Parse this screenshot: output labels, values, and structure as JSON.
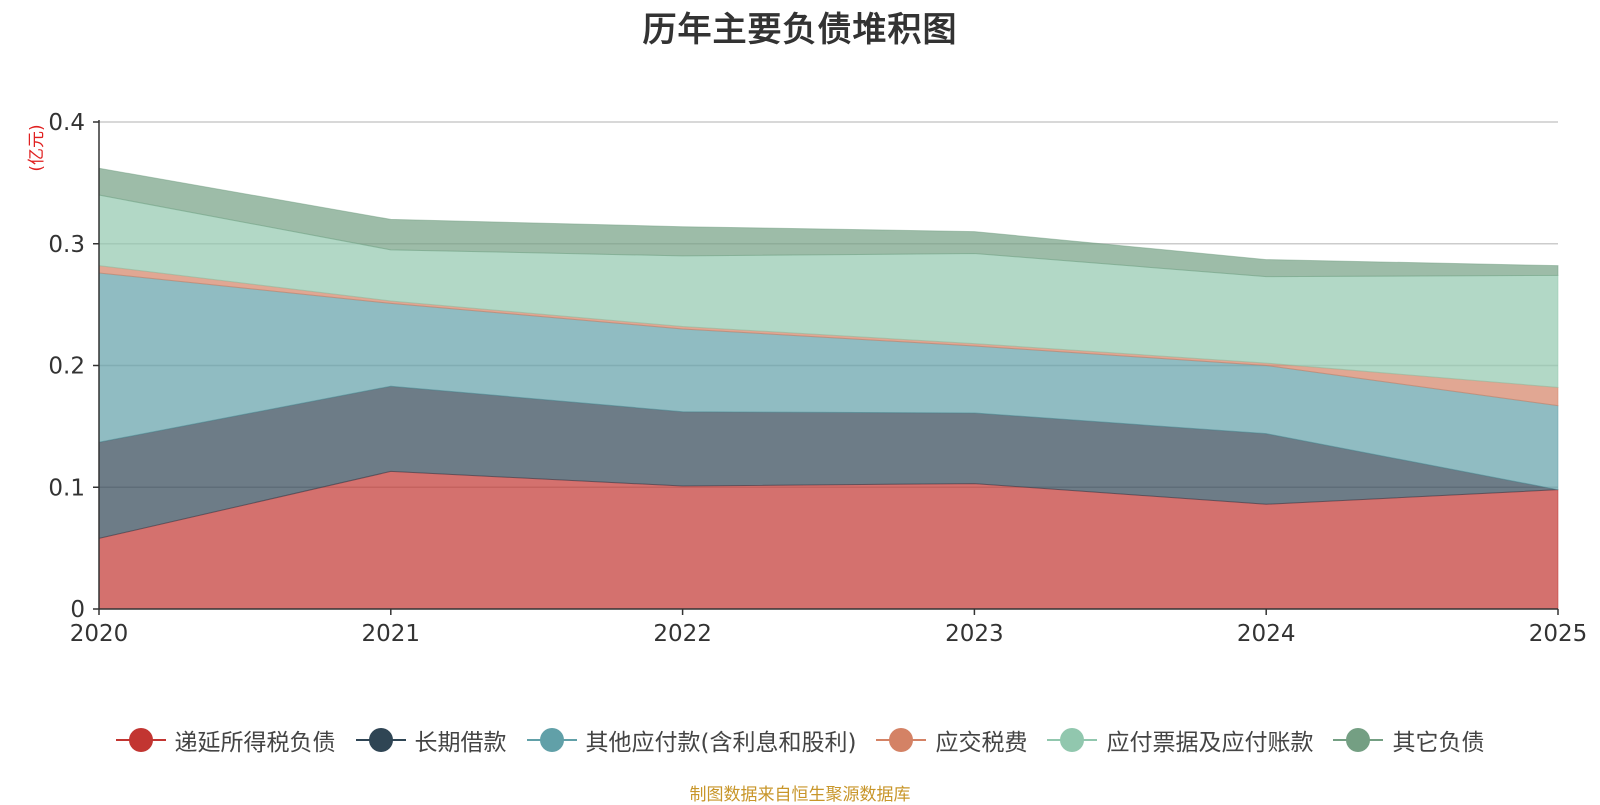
{
  "title": "历年主要负债堆积图",
  "unit_label": "(亿元)",
  "source_note": "制图数据来自恒生聚源数据库",
  "chart_data": {
    "type": "area",
    "stacked": true,
    "title": "历年主要负债堆积图",
    "ylabel": "(亿元)",
    "x": [
      "2020",
      "2021",
      "2022",
      "2023",
      "2024",
      "2025"
    ],
    "ylim": [
      0,
      0.4
    ],
    "yticks": [
      0,
      0.1,
      0.2,
      0.3,
      0.4
    ],
    "ytick_labels": [
      "0",
      "0.1",
      "0.2",
      "0.3",
      "0.4"
    ],
    "grid": true,
    "legend_position": "bottom",
    "series": [
      {
        "name": "递延所得税负债",
        "color": "#c23531",
        "values": [
          0.058,
          0.113,
          0.101,
          0.103,
          0.086,
          0.098
        ]
      },
      {
        "name": "长期借款",
        "color": "#2f4554",
        "values": [
          0.079,
          0.07,
          0.061,
          0.058,
          0.058,
          0.0
        ]
      },
      {
        "name": "其他应付款(含利息和股利)",
        "color": "#61a0a8",
        "values": [
          0.139,
          0.068,
          0.068,
          0.055,
          0.056,
          0.069
        ]
      },
      {
        "name": "应交税费",
        "color": "#d48265",
        "values": [
          0.006,
          0.002,
          0.002,
          0.002,
          0.002,
          0.015
        ]
      },
      {
        "name": "应付票据及应付账款",
        "color": "#91c7ae",
        "values": [
          0.058,
          0.042,
          0.058,
          0.074,
          0.071,
          0.092
        ]
      },
      {
        "name": "其它负债",
        "color": "#749f83",
        "values": [
          0.022,
          0.025,
          0.024,
          0.018,
          0.014,
          0.008
        ]
      }
    ]
  }
}
